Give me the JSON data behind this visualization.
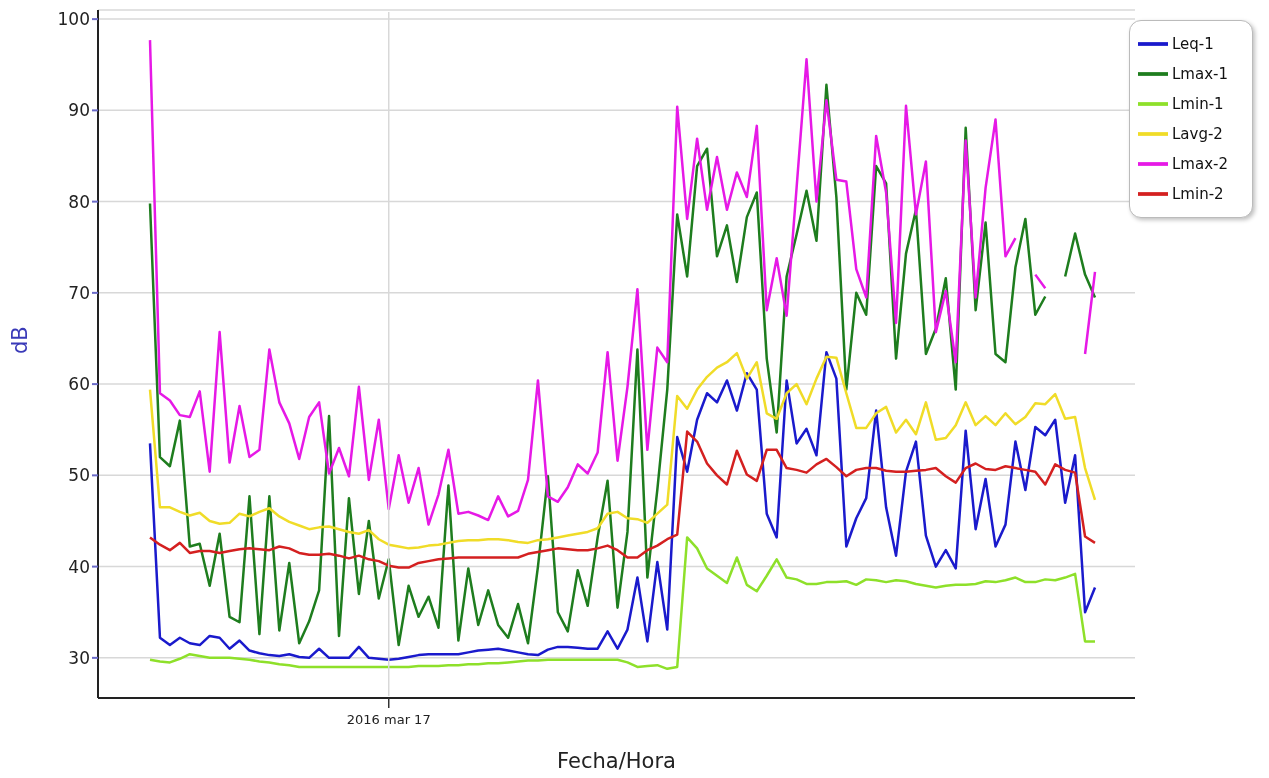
{
  "chart_data": {
    "type": "line",
    "xlabel": "Fecha/Hora",
    "ylabel": "dB",
    "ylim": [
      25.6,
      101
    ],
    "yticks": [
      30,
      40,
      50,
      60,
      70,
      80,
      90,
      100
    ],
    "grid": true,
    "legend": "top right",
    "marker": "none",
    "categories": [
      null,
      null,
      null,
      null,
      null,
      null,
      null,
      null,
      null,
      null,
      null,
      null,
      null,
      null,
      null,
      null,
      null,
      null,
      null,
      null,
      null,
      null,
      null,
      null,
      "2016 mar 17",
      null,
      null,
      null,
      null,
      null,
      null,
      null,
      null,
      null,
      null,
      null,
      null,
      null,
      null,
      null,
      null,
      null,
      null,
      null,
      null,
      null,
      null,
      null,
      null,
      null,
      null,
      null,
      null,
      null,
      null,
      null,
      null,
      null,
      null,
      null,
      null,
      null,
      null,
      null,
      null,
      null,
      null,
      null,
      null,
      null,
      null,
      null,
      null,
      null,
      null,
      null,
      null,
      null,
      null,
      null,
      null,
      null,
      null,
      null,
      null,
      null,
      null,
      null,
      null,
      null,
      null,
      null,
      null,
      null,
      null,
      null
    ],
    "series": [
      {
        "name": "Leq-1",
        "color": "#1a1acc",
        "values": [
          53.5,
          32.2,
          31.4,
          32.2,
          31.6,
          31.4,
          32.4,
          32.2,
          31.0,
          31.9,
          30.8,
          30.5,
          30.3,
          30.2,
          30.4,
          30.1,
          30,
          31,
          30,
          30,
          30,
          31.2,
          30,
          29.9,
          29.8,
          29.9,
          30.1,
          30.3,
          30.4,
          30.4,
          30.4,
          30.4,
          30.6,
          30.8,
          30.9,
          31,
          30.8,
          30.6,
          30.4,
          30.3,
          30.9,
          31.2,
          31.2,
          31.1,
          31,
          31,
          32.9,
          31,
          33.1,
          38.8,
          31.8,
          40.5,
          33.1,
          54.2,
          50.4,
          56.1,
          59,
          58,
          60.4,
          57.1,
          61.2,
          59.4,
          45.8,
          43.2,
          60.4,
          53.5,
          55.1,
          52.2,
          63.5,
          60.6,
          42.2,
          45.3,
          47.5,
          57.1,
          46.5,
          41.2,
          50.4,
          53.7,
          43.4,
          40,
          41.8,
          39.8,
          54.9,
          44.1,
          49.6,
          42.2,
          44.6,
          53.7,
          48.4,
          55.3,
          54.4,
          56.1,
          47,
          52.2,
          35,
          37.7
        ]
      },
      {
        "name": "Lmax-1",
        "color": "#1e7d1e",
        "values": [
          79.8,
          52,
          51,
          56,
          42.2,
          42.5,
          37.9,
          43.6,
          34.5,
          33.9,
          47.7,
          32.6,
          47.7,
          33,
          40.4,
          31.6,
          34,
          37.4,
          56.5,
          32.4,
          47.5,
          37,
          45,
          36.5,
          40.8,
          31.4,
          37.9,
          34.5,
          36.7,
          33.3,
          48.9,
          31.9,
          39.8,
          33.6,
          37.4,
          33.6,
          32.2,
          35.9,
          31.6,
          40,
          49.9,
          35,
          32.9,
          39.6,
          35.7,
          43.2,
          49.4,
          35.5,
          43.8,
          63.8,
          38.8,
          48.4,
          59.4,
          78.6,
          71.8,
          83.9,
          85.8,
          74,
          77.4,
          71.2,
          78.3,
          81,
          62.8,
          54.7,
          71.8,
          76.4,
          81.2,
          75.7,
          92.8,
          80.5,
          59.4,
          70,
          67.6,
          83.9,
          82,
          62.8,
          74.3,
          79.1,
          63.3,
          66.1,
          71.6,
          59.4,
          88.1,
          68.1,
          77.7,
          63.3,
          62.4,
          72.8,
          78.1,
          67.6,
          69.6,
          null,
          71.8,
          76.5,
          72,
          69.5
        ]
      },
      {
        "name": "Lmin-1",
        "color": "#8ee02a",
        "values": [
          29.8,
          29.6,
          29.5,
          29.9,
          30.4,
          30.2,
          30,
          30,
          30,
          29.9,
          29.8,
          29.6,
          29.5,
          29.3,
          29.2,
          29,
          29,
          29,
          29,
          29,
          29,
          29,
          29,
          29,
          29,
          29,
          29,
          29.1,
          29.1,
          29.1,
          29.2,
          29.2,
          29.3,
          29.3,
          29.4,
          29.4,
          29.5,
          29.6,
          29.7,
          29.7,
          29.8,
          29.8,
          29.8,
          29.8,
          29.8,
          29.8,
          29.8,
          29.8,
          29.5,
          29,
          29.1,
          29.2,
          28.8,
          29,
          43.2,
          42,
          39.8,
          39,
          38.2,
          41,
          38,
          37.3,
          39,
          40.8,
          38.8,
          38.6,
          38.1,
          38.1,
          38.3,
          38.3,
          38.4,
          38,
          38.6,
          38.5,
          38.3,
          38.5,
          38.4,
          38.1,
          37.9,
          37.7,
          37.9,
          38,
          38,
          38.1,
          38.4,
          38.3,
          38.5,
          38.8,
          38.3,
          38.3,
          38.6,
          38.5,
          38.8,
          39.2,
          31.8,
          31.8
        ]
      },
      {
        "name": "Lavg-2",
        "color": "#f0dc28",
        "values": [
          59.4,
          46.5,
          46.5,
          46,
          45.6,
          45.9,
          45,
          44.7,
          44.8,
          45.8,
          45.5,
          46,
          46.4,
          45.5,
          44.9,
          44.5,
          44.1,
          44.3,
          44.4,
          44.1,
          43.8,
          43.6,
          44,
          43,
          42.4,
          42.2,
          42,
          42.1,
          42.3,
          42.4,
          42.6,
          42.8,
          42.9,
          42.9,
          43,
          43,
          42.9,
          42.7,
          42.6,
          42.9,
          43,
          43.2,
          43.4,
          43.6,
          43.8,
          44.2,
          45.8,
          46,
          45.3,
          45.2,
          44.8,
          45.8,
          46.8,
          58.7,
          57.3,
          59.4,
          60.8,
          61.8,
          62.4,
          63.4,
          60.6,
          62.4,
          56.8,
          56.2,
          59,
          60,
          57.8,
          60.6,
          63,
          62.9,
          59,
          55.2,
          55.2,
          56.8,
          57.5,
          54.7,
          56.1,
          54.5,
          58,
          53.9,
          54.1,
          55.5,
          58,
          55.5,
          56.5,
          55.5,
          56.8,
          55.6,
          56.4,
          57.9,
          57.8,
          58.9,
          56.2,
          56.4,
          50.8,
          47.3
        ]
      },
      {
        "name": "Lmax-2",
        "color": "#e619e6",
        "values": [
          97.7,
          59,
          58.2,
          56.6,
          56.4,
          59.2,
          50.4,
          65.7,
          51.4,
          57.6,
          52,
          52.8,
          63.8,
          58,
          55.7,
          51.8,
          56.4,
          58,
          50.2,
          53,
          49.9,
          59.7,
          49.5,
          56.1,
          46.3,
          52.2,
          47,
          50.8,
          44.6,
          47.9,
          52.8,
          45.8,
          46,
          45.6,
          45.1,
          47.7,
          45.5,
          46.1,
          49.5,
          60.4,
          47.7,
          47.1,
          48.7,
          51.2,
          50.2,
          52.5,
          63.5,
          51.6,
          59.7,
          70.4,
          52.8,
          64,
          62.4,
          90.4,
          78.1,
          86.9,
          79.1,
          84.9,
          79.1,
          83.2,
          80.5,
          88.3,
          68.1,
          73.8,
          67.5,
          81.5,
          95.6,
          80,
          91.1,
          82.4,
          82.2,
          72.6,
          69.5,
          87.2,
          81,
          66.7,
          90.5,
          78.6,
          84.4,
          65.7,
          70.2,
          62.4,
          86.7,
          69.5,
          81.5,
          89,
          74,
          76,
          null,
          72,
          70.5,
          null,
          null,
          null,
          63.3,
          72.3
        ]
      },
      {
        "name": "Lmin-2",
        "color": "#d42020",
        "values": [
          43.2,
          42.4,
          41.8,
          42.6,
          41.5,
          41.7,
          41.7,
          41.5,
          41.7,
          41.9,
          42,
          41.9,
          41.8,
          42.2,
          42,
          41.5,
          41.3,
          41.3,
          41.4,
          41.2,
          40.9,
          41.2,
          40.8,
          40.6,
          40.1,
          39.9,
          39.9,
          40.4,
          40.6,
          40.8,
          40.9,
          41,
          41,
          41,
          41,
          41,
          41,
          41,
          41.4,
          41.6,
          41.8,
          42,
          41.9,
          41.8,
          41.8,
          42,
          42.3,
          41.8,
          41,
          41,
          41.8,
          42.3,
          43,
          43.5,
          54.8,
          53.7,
          51.3,
          50,
          49,
          52.7,
          50.1,
          49.4,
          52.8,
          52.8,
          50.8,
          50.6,
          50.3,
          51.2,
          51.8,
          50.9,
          49.9,
          50.6,
          50.8,
          50.8,
          50.5,
          50.4,
          50.4,
          50.5,
          50.6,
          50.8,
          49.9,
          49.2,
          50.8,
          51.3,
          50.7,
          50.6,
          51,
          50.8,
          50.6,
          50.4,
          49,
          51.2,
          50.6,
          50.3,
          43.3,
          42.6
        ]
      }
    ]
  }
}
